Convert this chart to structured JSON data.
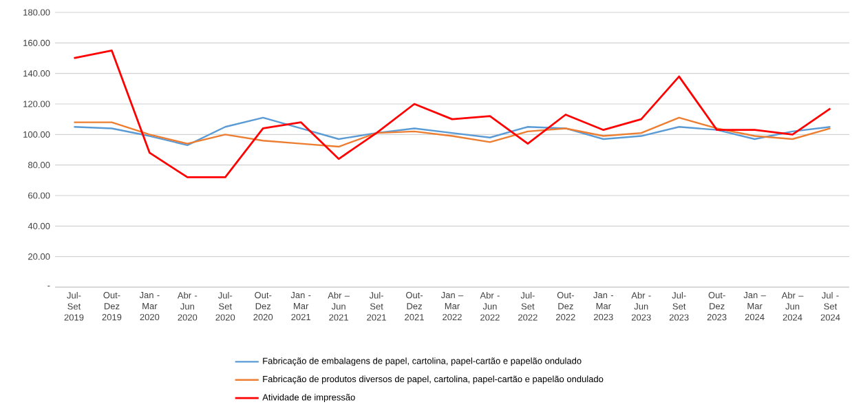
{
  "chart_data": {
    "type": "line",
    "categories": [
      "Jul- Set 2019",
      "Out- Dez 2019",
      "Jan - Mar 2020",
      "Abr - Jun 2020",
      "Jul- Set 2020",
      "Out- Dez 2020",
      "Jan - Mar 2021",
      "Abr – Jun 2021",
      "Jul- Set 2021",
      "Out- Dez 2021",
      "Jan – Mar 2022",
      "Abr - Jun 2022",
      "Jul- Set 2022",
      "Out- Dez 2022",
      "Jan - Mar 2023",
      "Abr - Jun 2023",
      "Jul- Set 2023",
      "Out- Dez 2023",
      "Jan – Mar 2024",
      "Abr – Jun 2024",
      "Jul - Set 2024"
    ],
    "series": [
      {
        "name": "Fabricação de embalagens de papel, cartolina, papel-cartão e papelão ondulado",
        "color": "#5b9bd5",
        "values": [
          105,
          104,
          99,
          93,
          105,
          111,
          104,
          97,
          101,
          104,
          101,
          98,
          105,
          104,
          97,
          99,
          105,
          103,
          97,
          102,
          105
        ]
      },
      {
        "name": "Fabricação de produtos diversos de papel, cartolina, papel-cartão e papelão ondulado",
        "color": "#ed7d31",
        "values": [
          108,
          108,
          100,
          94,
          100,
          96,
          94,
          92,
          101,
          102,
          99,
          95,
          102,
          104,
          99,
          101,
          111,
          104,
          99,
          97,
          104
        ]
      },
      {
        "name": "Atividade de impressão",
        "color": "#ff0000",
        "values": [
          150,
          155,
          88,
          72,
          72,
          104,
          108,
          84,
          101,
          120,
          110,
          112,
          94,
          113,
          103,
          110,
          138,
          103,
          103,
          100,
          117
        ]
      }
    ],
    "ylim": [
      0,
      180
    ],
    "yticks": [
      {
        "value": 0,
        "label": "-"
      },
      {
        "value": 20,
        "label": "20.00"
      },
      {
        "value": 40,
        "label": "40.00"
      },
      {
        "value": 60,
        "label": "60.00"
      },
      {
        "value": 80,
        "label": "80.00"
      },
      {
        "value": 100,
        "label": "100.00"
      },
      {
        "value": 120,
        "label": "120.00"
      },
      {
        "value": 140,
        "label": "140.00"
      },
      {
        "value": 160,
        "label": "160.00"
      },
      {
        "value": 180,
        "label": "180.00"
      }
    ],
    "grid": "y",
    "legend": "bottom",
    "marker": "none",
    "line_style": "solid"
  }
}
